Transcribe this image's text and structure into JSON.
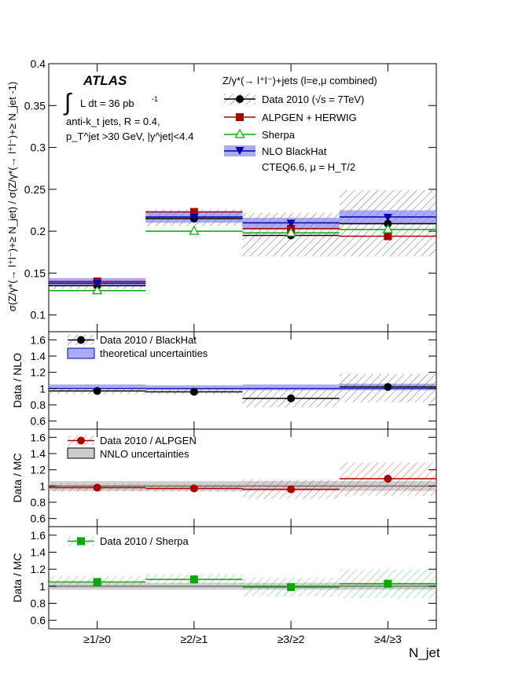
{
  "chart_data": [
    {
      "type": "scatter",
      "panel": "main",
      "categories": [
        "≥1/≥0",
        "≥2/≥1",
        "≥3/≥2",
        "≥4/≥3"
      ],
      "ylabel": "σ(Z/γ*(→ l⁺l⁻)+≥ N_jet) / σ(Z/γ*(→ l⁺l⁻)+≥ N_jet -1)",
      "ylim": [
        0.08,
        0.4
      ],
      "yticks": [
        "0.1",
        "0.15",
        "0.2",
        "0.25",
        "0.3",
        "0.35",
        "0.4"
      ],
      "yticks_values": [
        0.1,
        0.15,
        0.2,
        0.25,
        0.3,
        0.35,
        0.4
      ],
      "experiment": "ATLAS",
      "lumi_label": "L dt = 36 pb",
      "lumi_superscript": "-1",
      "cuts": [
        "anti-k_t jets, R = 0.4,",
        "p_T^jet >30 GeV, |y^jet|<4.4"
      ],
      "process_label": "Z/γ*(→ l⁺l⁻)+jets (l=e,μ combined)",
      "series": [
        {
          "name": "Data 2010 (√s = 7TeV)",
          "color": "#000000",
          "marker": "circle",
          "values": [
            0.135,
            0.215,
            0.195,
            0.209
          ],
          "band_low": [
            0.131,
            0.206,
            0.17,
            0.17
          ],
          "band_high": [
            0.14,
            0.226,
            0.222,
            0.249
          ]
        },
        {
          "name": "ALPGEN + HERWIG",
          "color": "#aa0000",
          "marker": "square",
          "values": [
            0.14,
            0.223,
            0.203,
            0.194
          ]
        },
        {
          "name": "Sherpa",
          "color": "#00aa00",
          "marker": "open-triangle",
          "values": [
            0.129,
            0.2,
            0.198,
            0.202
          ]
        },
        {
          "name": "NLO BlackHat",
          "color": "#0000aa",
          "marker": "triangle-down",
          "values": [
            0.138,
            0.217,
            0.21,
            0.217
          ],
          "band_low": [
            0.134,
            0.21,
            0.202,
            0.208
          ],
          "band_high": [
            0.144,
            0.224,
            0.216,
            0.225
          ]
        }
      ],
      "band_note": "CTEQ6.6, μ = H_T/2"
    },
    {
      "type": "scatter",
      "panel": "ratio-nlo",
      "ylabel": "Data / NLO",
      "ylim": [
        0.5,
        1.7
      ],
      "yticks": [
        "0.6",
        "0.8",
        "1",
        "1.2",
        "1.4",
        "1.6"
      ],
      "legend": [
        "Data 2010 / BlackHat",
        "theoretical uncertainties"
      ],
      "values": [
        0.97,
        0.96,
        0.88,
        1.02
      ],
      "data_band": [
        [
          0.93,
          1.01
        ],
        [
          0.93,
          0.99
        ],
        [
          0.77,
          0.99
        ],
        [
          0.83,
          1.18
        ]
      ],
      "theory_band": [
        [
          0.99,
          1.05
        ],
        [
          0.98,
          1.04
        ],
        [
          0.98,
          1.05
        ],
        [
          0.98,
          1.06
        ]
      ]
    },
    {
      "type": "scatter",
      "panel": "ratio-alpgen",
      "ylabel": "Data / MC",
      "ylim": [
        0.5,
        1.7
      ],
      "yticks": [
        "0.6",
        "0.8",
        "1",
        "1.2",
        "1.4",
        "1.6"
      ],
      "legend": [
        "Data 2010 / ALPGEN",
        "NNLO uncertainties"
      ],
      "values": [
        0.98,
        0.97,
        0.96,
        1.09
      ],
      "data_band": [
        [
          0.93,
          1.03
        ],
        [
          0.93,
          1.02
        ],
        [
          0.84,
          1.08
        ],
        [
          0.88,
          1.29
        ]
      ],
      "theory_band": [
        [
          0.94,
          1.06
        ],
        [
          0.94,
          1.06
        ],
        [
          0.94,
          1.06
        ],
        [
          0.94,
          1.06
        ]
      ]
    },
    {
      "type": "scatter",
      "panel": "ratio-sherpa",
      "ylabel": "Data / MC",
      "ylim": [
        0.5,
        1.7
      ],
      "yticks": [
        "0.6",
        "0.8",
        "1",
        "1.2",
        "1.4",
        "1.6"
      ],
      "xlabel": "N_jet",
      "legend": [
        "Data 2010 / Sherpa"
      ],
      "values": [
        1.05,
        1.08,
        0.99,
        1.03
      ],
      "data_band": [
        [
          1.0,
          1.12
        ],
        [
          1.02,
          1.14
        ],
        [
          0.88,
          1.1
        ],
        [
          0.86,
          1.2
        ]
      ],
      "theory_band": [
        [
          0.96,
          1.04
        ],
        [
          0.96,
          1.04
        ],
        [
          0.96,
          1.04
        ],
        [
          0.96,
          1.04
        ]
      ]
    }
  ]
}
